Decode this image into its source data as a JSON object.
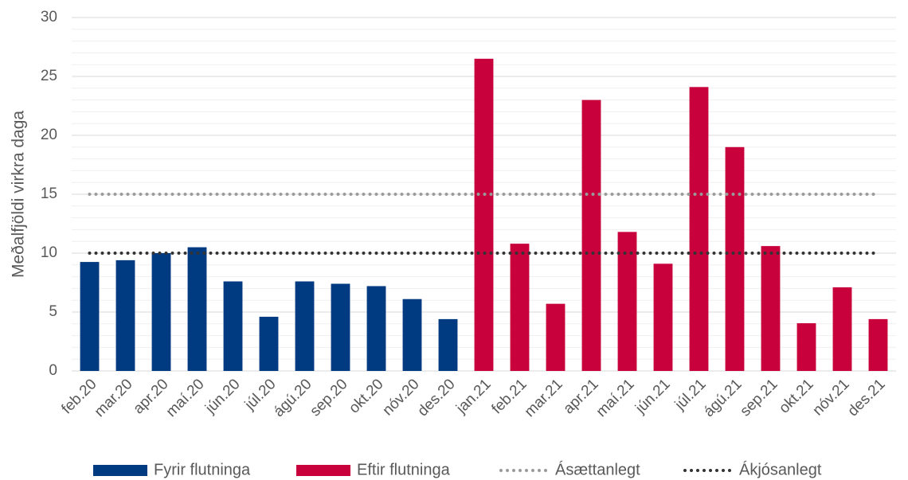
{
  "chart_data": {
    "type": "bar",
    "ylabel": "Meðalfjöldi virkra daga",
    "categories": [
      "feb.20",
      "mar.20",
      "apr.20",
      "maí.20",
      "jún.20",
      "júl.20",
      "ágú.20",
      "sep.20",
      "okt.20",
      "nóv.20",
      "des.20",
      "jan.21",
      "feb.21",
      "mar.21",
      "apr.21",
      "maí.21",
      "jún.21",
      "júl.21",
      "ágú.21",
      "sep.21",
      "okt.21",
      "nóv.21",
      "des.21"
    ],
    "series": [
      {
        "name": "Fyrir flutninga",
        "type": "bar",
        "color": "#003a80",
        "values": [
          9.25,
          9.4,
          10.0,
          10.5,
          7.6,
          4.6,
          7.6,
          7.4,
          7.2,
          6.1,
          4.4,
          null,
          null,
          null,
          null,
          null,
          null,
          null,
          null,
          null,
          null,
          null,
          null
        ]
      },
      {
        "name": "Eftir flutninga",
        "type": "bar",
        "color": "#c8003c",
        "values": [
          null,
          null,
          null,
          null,
          null,
          null,
          null,
          null,
          null,
          null,
          null,
          26.5,
          10.8,
          5.7,
          23.0,
          11.8,
          9.1,
          24.1,
          19.0,
          10.6,
          4.05,
          7.1,
          4.4
        ]
      },
      {
        "name": "Ásættanlegt",
        "type": "line",
        "color": "#9a9a9a",
        "values": [
          15,
          15,
          15,
          15,
          15,
          15,
          15,
          15,
          15,
          15,
          15,
          15,
          15,
          15,
          15,
          15,
          15,
          15,
          15,
          15,
          15,
          15,
          15
        ]
      },
      {
        "name": "Ákjósanlegt",
        "type": "line",
        "color": "#333333",
        "values": [
          10,
          10,
          10,
          10,
          10,
          10,
          10,
          10,
          10,
          10,
          10,
          10,
          10,
          10,
          10,
          10,
          10,
          10,
          10,
          10,
          10,
          10,
          10
        ]
      }
    ],
    "ylim": [
      0,
      30
    ],
    "yticks": [
      0,
      5,
      10,
      15,
      20,
      25,
      30
    ],
    "grid": true,
    "minor_grid": true,
    "legend": "bottom"
  }
}
